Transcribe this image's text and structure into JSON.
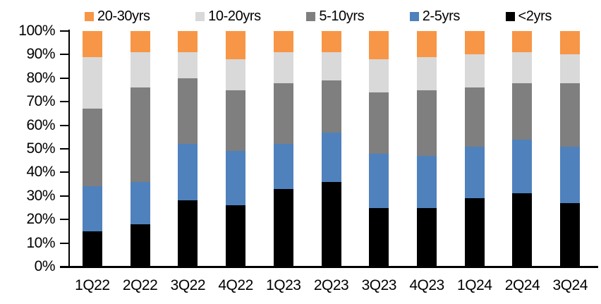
{
  "chart_data": {
    "type": "bar",
    "subtype": "stacked-100-percent",
    "title": "",
    "xlabel": "",
    "ylabel": "",
    "grid": false,
    "categories": [
      "1Q22",
      "2Q22",
      "3Q22",
      "4Q22",
      "1Q23",
      "2Q23",
      "3Q23",
      "4Q23",
      "1Q24",
      "2Q24",
      "3Q24"
    ],
    "series": [
      {
        "name": "<2yrs",
        "color": "#000000",
        "values": [
          15,
          18,
          28,
          26,
          33,
          36,
          25,
          25,
          29,
          31,
          27
        ]
      },
      {
        "name": "2-5yrs",
        "color": "#4F81BD",
        "values": [
          19,
          18,
          24,
          23,
          19,
          21,
          23,
          22,
          22,
          23,
          24
        ]
      },
      {
        "name": "5-10yrs",
        "color": "#7F7F7F",
        "values": [
          33,
          40,
          28,
          26,
          26,
          22,
          26,
          28,
          25,
          24,
          27
        ]
      },
      {
        "name": "10-20yrs",
        "color": "#D9D9D9",
        "values": [
          22,
          15,
          11,
          13,
          13,
          12,
          14,
          14,
          14,
          13,
          12
        ]
      },
      {
        "name": "20-30yrs",
        "color": "#F79646",
        "values": [
          11,
          9,
          9,
          12,
          9,
          9,
          12,
          11,
          10,
          9,
          10
        ]
      }
    ],
    "legend": {
      "position": "top",
      "order": [
        "20-30yrs",
        "10-20yrs",
        "5-10yrs",
        "2-5yrs",
        "<2yrs"
      ]
    },
    "y_axis": {
      "min": 0,
      "max": 100,
      "step": 10,
      "tick_labels": [
        "0%",
        "10%",
        "20%",
        "30%",
        "40%",
        "50%",
        "60%",
        "70%",
        "80%",
        "90%",
        "100%"
      ]
    }
  }
}
